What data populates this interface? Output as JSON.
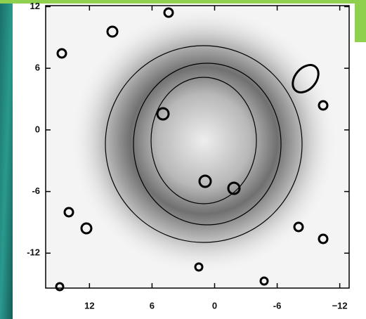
{
  "chart_data": {
    "type": "image",
    "xlim": [
      16.2,
      -12.9
    ],
    "xticks": [
      12,
      6,
      0,
      -6,
      {
        "value": -12,
        "label": "−12"
      }
    ],
    "ylim": [
      -15.4,
      12.1
    ],
    "yticks": [
      12,
      6,
      0,
      -6,
      -12
    ]
  }
}
